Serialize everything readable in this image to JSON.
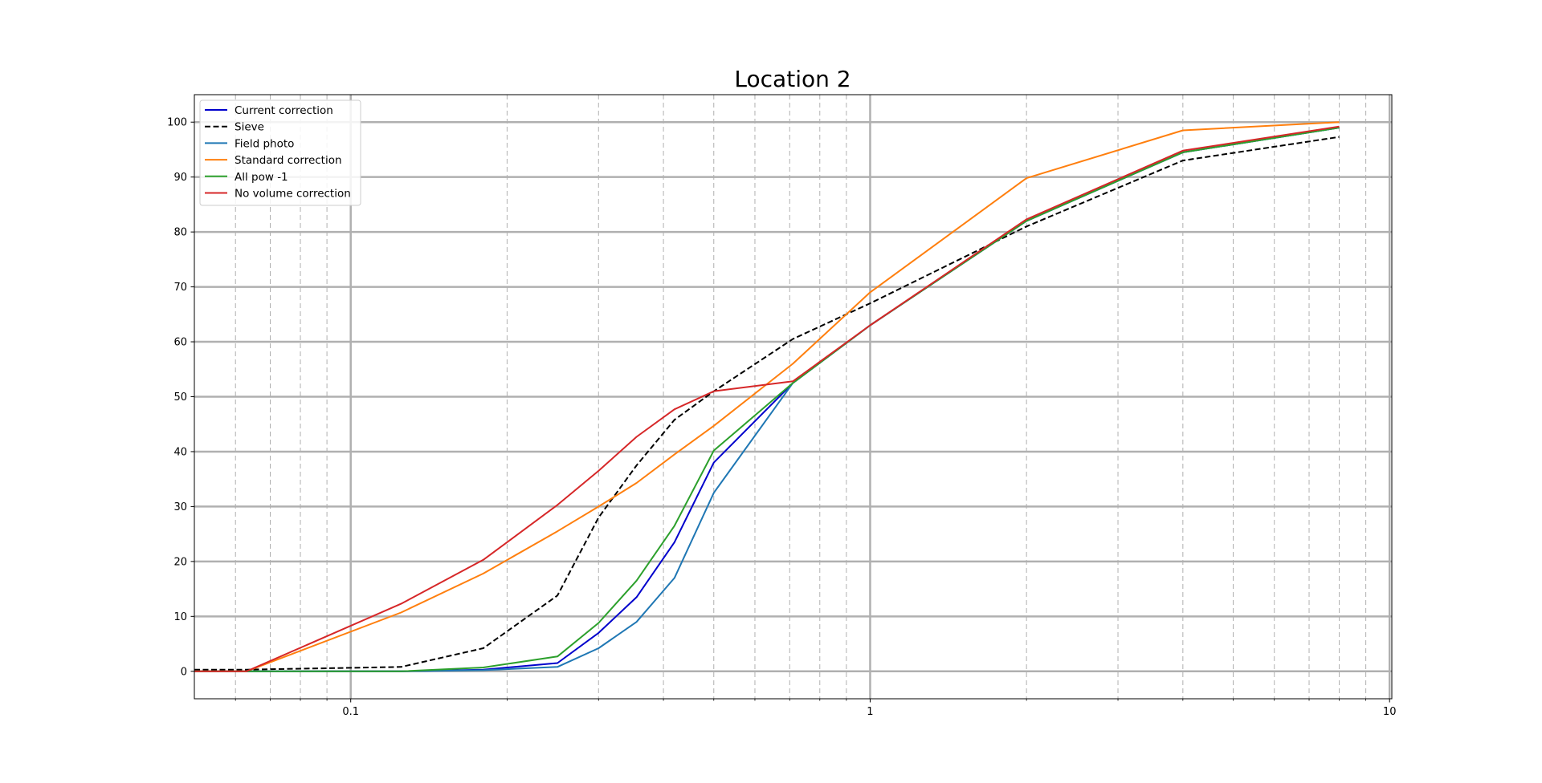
{
  "chart_data": {
    "type": "line",
    "title": "Location 2",
    "xlabel": "",
    "ylabel": "",
    "xscale": "log",
    "xlim": [
      0.05,
      10.1
    ],
    "ylim": [
      -5,
      105
    ],
    "grid": true,
    "legend_position": "top-left",
    "x_tick_labels": [
      "0.1",
      "1",
      "10"
    ],
    "x_tick_values": [
      0.1,
      1,
      10
    ],
    "y_ticks": [
      0,
      10,
      20,
      30,
      40,
      50,
      60,
      70,
      80,
      90,
      100
    ],
    "series": [
      {
        "name": "Current correction",
        "color": "#0000cc",
        "dash": "solid",
        "x": [
          0.05,
          0.063,
          0.125,
          0.18,
          0.25,
          0.3,
          0.355,
          0.42,
          0.5,
          0.71,
          1.0,
          2.0,
          4.0,
          8.0
        ],
        "y": [
          0,
          0,
          0,
          0.3,
          1.5,
          7,
          13.5,
          23.5,
          38,
          52.5,
          63,
          82,
          94.5,
          99
        ]
      },
      {
        "name": "Sieve",
        "color": "#000000",
        "dash": "dashed",
        "x": [
          0.05,
          0.063,
          0.125,
          0.18,
          0.25,
          0.3,
          0.355,
          0.42,
          0.5,
          0.71,
          1.0,
          2.0,
          4.0,
          8.0
        ],
        "y": [
          0.3,
          0.3,
          0.8,
          4.2,
          13.8,
          28,
          37.5,
          45.8,
          51,
          60.5,
          67,
          81,
          93,
          97.3
        ]
      },
      {
        "name": "Field photo",
        "color": "#1f77b4",
        "dash": "solid",
        "x": [
          0.05,
          0.063,
          0.125,
          0.18,
          0.25,
          0.3,
          0.355,
          0.42,
          0.5,
          0.71,
          1.0,
          2.0,
          4.0,
          8.0
        ],
        "y": [
          0,
          0,
          0,
          0.2,
          0.8,
          4.2,
          9,
          17,
          32.5,
          52.5,
          63,
          82,
          94.5,
          99
        ]
      },
      {
        "name": "Standard correction",
        "color": "#ff7f0e",
        "dash": "solid",
        "x": [
          0.05,
          0.063,
          0.125,
          0.18,
          0.25,
          0.3,
          0.355,
          0.42,
          0.5,
          0.71,
          1.0,
          2.0,
          4.0,
          8.0
        ],
        "y": [
          0,
          0,
          10.7,
          17.8,
          25.5,
          30,
          34.3,
          39.5,
          44.7,
          56,
          69,
          89.8,
          98.5,
          100
        ]
      },
      {
        "name": "All pow -1",
        "color": "#2ca02c",
        "dash": "solid",
        "x": [
          0.05,
          0.063,
          0.125,
          0.18,
          0.25,
          0.3,
          0.355,
          0.42,
          0.5,
          0.71,
          1.0,
          2.0,
          4.0,
          8.0
        ],
        "y": [
          0,
          0,
          0,
          0.7,
          2.7,
          8.8,
          16.5,
          26.5,
          40.2,
          52.5,
          63,
          82,
          94.5,
          99
        ]
      },
      {
        "name": "No volume correction",
        "color": "#d62728",
        "dash": "solid",
        "x": [
          0.05,
          0.063,
          0.125,
          0.18,
          0.25,
          0.3,
          0.355,
          0.42,
          0.5,
          0.71,
          1.0,
          2.0,
          4.0,
          8.0
        ],
        "y": [
          0,
          0,
          12.3,
          20.3,
          30.3,
          36.5,
          42.7,
          47.7,
          51,
          52.8,
          63,
          82.3,
          94.8,
          99.2
        ]
      }
    ]
  }
}
